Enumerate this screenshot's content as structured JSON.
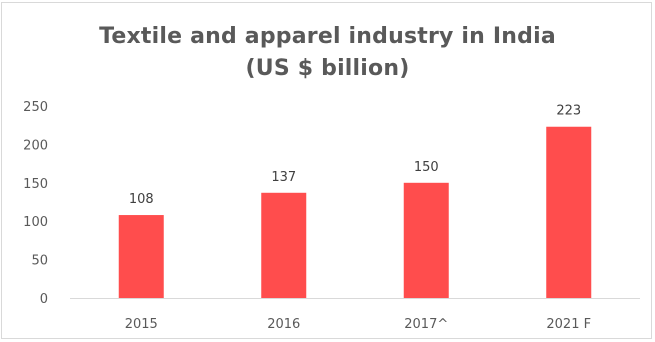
{
  "chart_data": {
    "type": "bar",
    "title": "Textile and apparel industry in India",
    "subtitle": "(US $ billion)",
    "categories": [
      "2015",
      "2016",
      "2017^",
      "2021 F"
    ],
    "values": [
      108,
      137,
      150,
      223
    ],
    "data_labels": [
      "108",
      "137",
      "150",
      "223"
    ],
    "ylim": [
      0,
      250
    ],
    "yticks": [
      0,
      50,
      100,
      150,
      200,
      250
    ],
    "xlabel": "",
    "ylabel": "",
    "grid": false,
    "bar_color": "#ff4d4d"
  }
}
